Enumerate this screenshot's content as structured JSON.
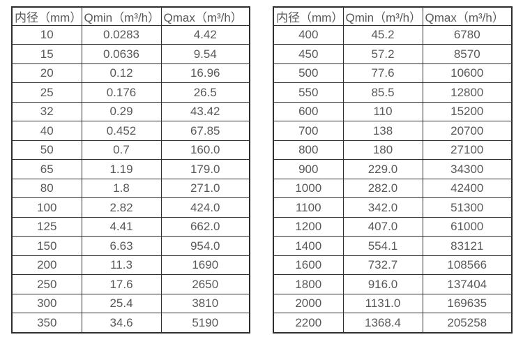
{
  "page": {
    "background": "#ffffff"
  },
  "style": {
    "border_color": "#2e2e2e",
    "text_color": "#595959"
  },
  "tables": [
    {
      "name": "flow-spec-table-small-diameters",
      "headers": [
        "内径（mm）",
        "Qmin（m³/h）",
        "Qmax（m³/h）"
      ],
      "rows": [
        [
          "10",
          "0.0283",
          "4.42"
        ],
        [
          "15",
          "0.0636",
          "9.54"
        ],
        [
          "20",
          "0.12",
          "16.96"
        ],
        [
          "25",
          "0.176",
          "26.5"
        ],
        [
          "32",
          "0.29",
          "43.42"
        ],
        [
          "40",
          "0.452",
          "67.85"
        ],
        [
          "50",
          "0.7",
          "160.0"
        ],
        [
          "65",
          "1.19",
          "179.0"
        ],
        [
          "80",
          "1.8",
          "271.0"
        ],
        [
          "100",
          "2.82",
          "424.0"
        ],
        [
          "125",
          "4.41",
          "662.0"
        ],
        [
          "150",
          "6.63",
          "954.0"
        ],
        [
          "200",
          "11.3",
          "1690"
        ],
        [
          "250",
          "17.6",
          "2650"
        ],
        [
          "300",
          "25.4",
          "3810"
        ],
        [
          "350",
          "34.6",
          "5190"
        ]
      ]
    },
    {
      "name": "flow-spec-table-large-diameters",
      "headers": [
        "内径（mm）",
        "Qmin（m³/h）",
        "Qmax（m³/h）"
      ],
      "rows": [
        [
          "400",
          "45.2",
          "6780"
        ],
        [
          "450",
          "57.2",
          "8570"
        ],
        [
          "500",
          "77.6",
          "10600"
        ],
        [
          "550",
          "85.5",
          "12800"
        ],
        [
          "600",
          "110",
          "15200"
        ],
        [
          "700",
          "138",
          "20700"
        ],
        [
          "800",
          "180",
          "27100"
        ],
        [
          "900",
          "229.0",
          "34300"
        ],
        [
          "1000",
          "282.0",
          "42400"
        ],
        [
          "1100",
          "342.0",
          "51300"
        ],
        [
          "1200",
          "407.0",
          "61000"
        ],
        [
          "1400",
          "554.1",
          "83121"
        ],
        [
          "1600",
          "732.7",
          "108566"
        ],
        [
          "1800",
          "916.0",
          "137404"
        ],
        [
          "2000",
          "1131.0",
          "169635"
        ],
        [
          "2200",
          "1368.4",
          "205258"
        ]
      ]
    }
  ]
}
